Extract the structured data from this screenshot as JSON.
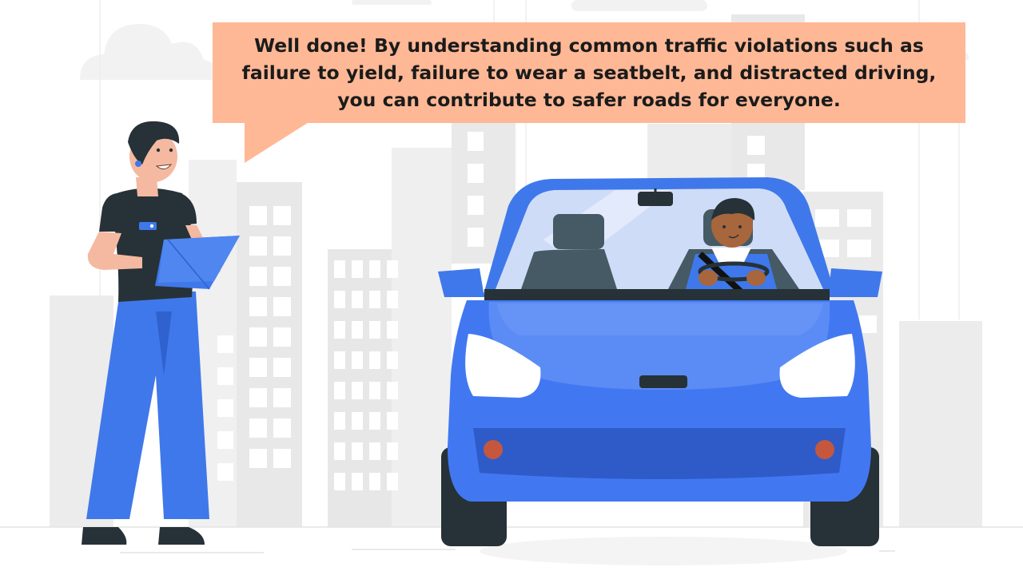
{
  "slide": {
    "feedback_message": "Well done! By understanding common traffic violations such as failure to yield, failure to wear a seatbelt, and distracted driving, you can contribute to safer roads for everyone."
  },
  "colors": {
    "bubble": "#ffb895",
    "car_body": "#4178f2",
    "car_dark": "#2f5bc9",
    "instructor_pants": "#3f78ea",
    "buildings": "#ebebeb",
    "tires": "#263238",
    "skin_light": "#f4b9a0",
    "skin_dark": "#a8663c"
  },
  "icons": {
    "scene": "driving-test-illustration",
    "instructor": "instructor-with-clipboard",
    "car": "blue-car-with-driver"
  }
}
